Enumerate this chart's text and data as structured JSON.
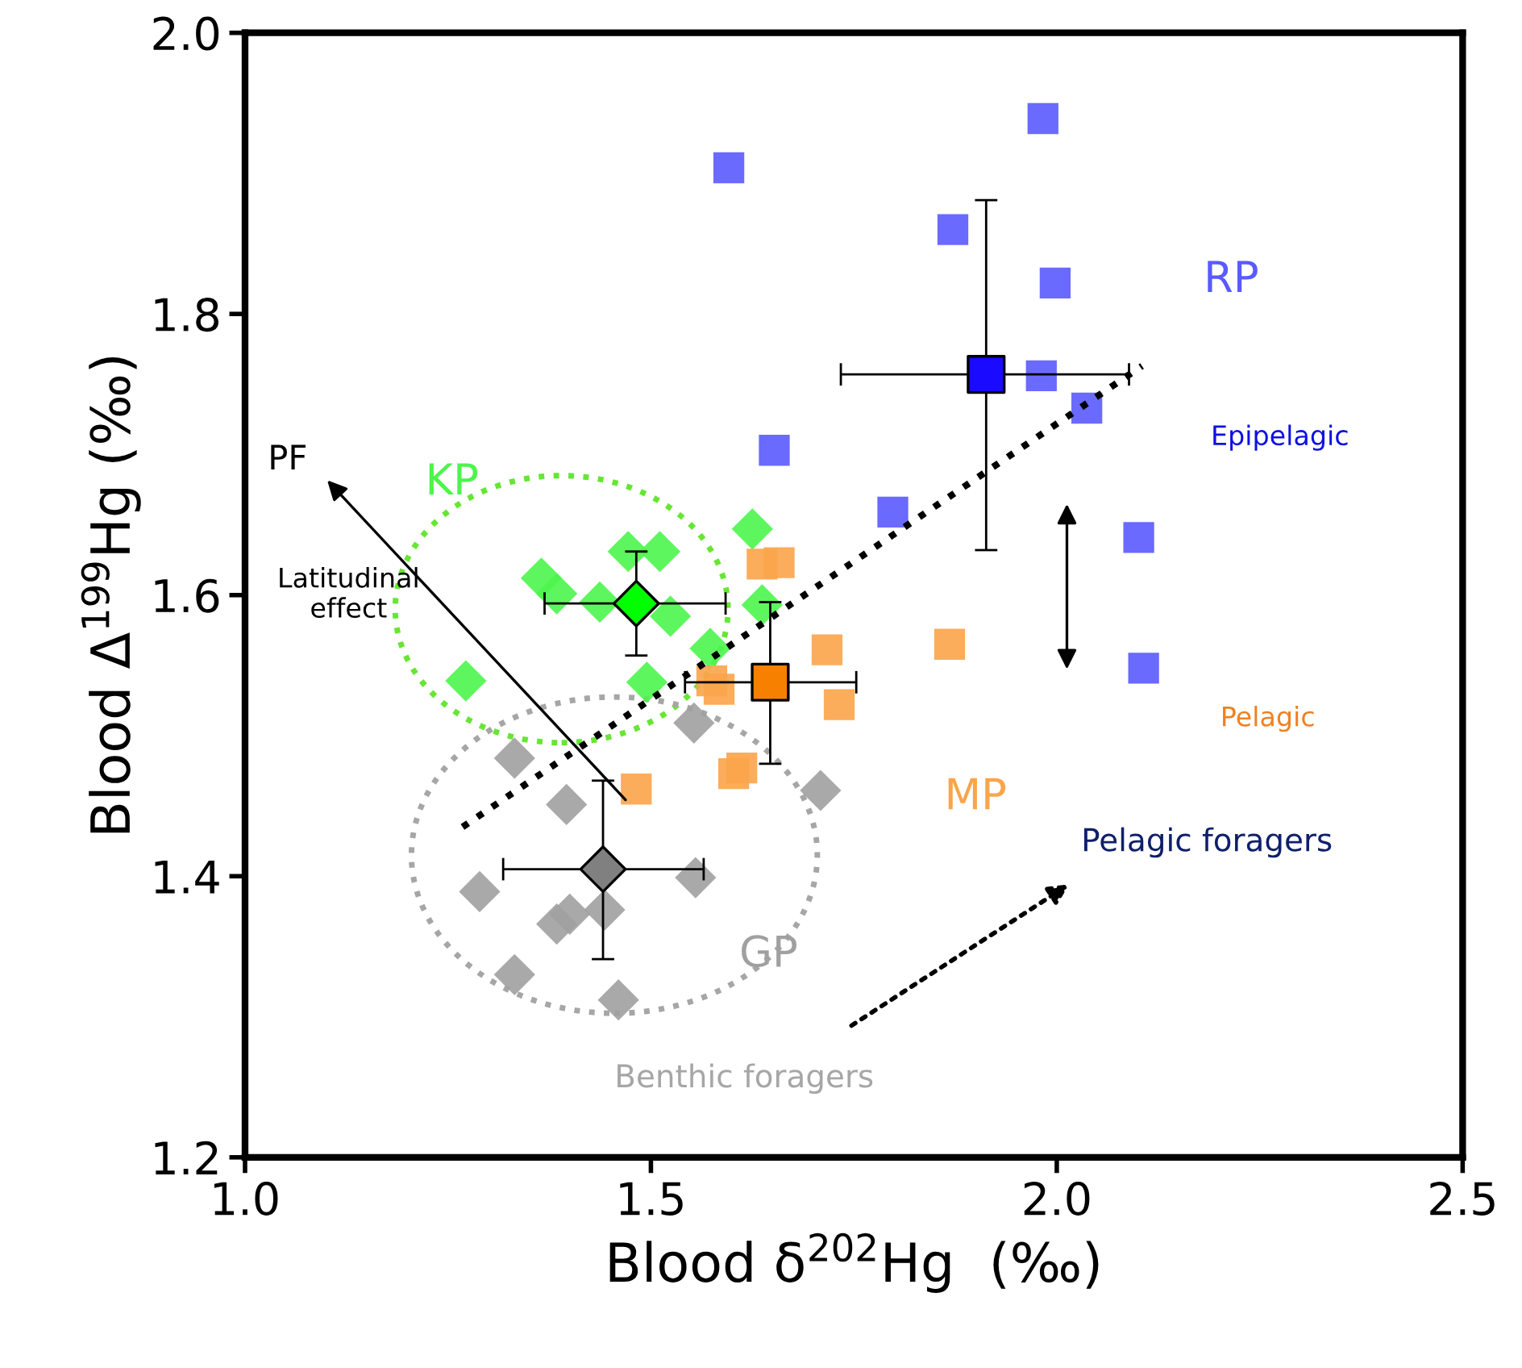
{
  "chart_data": {
    "type": "scatter",
    "xlabel": "Blood δ$^{202}$Hg  (‰)",
    "ylabel": "Blood Δ$^{199}$Hg (‰)",
    "xlim": [
      1.0,
      2.5
    ],
    "xticks": [
      {
        "value": 1,
        "label": "1.0"
      },
      1.5,
      {
        "value": 2,
        "label": "2.0"
      },
      2.5
    ],
    "ylim": [
      1.2,
      2.0
    ],
    "yticks": [
      1.2,
      1.4,
      1.6,
      1.8,
      {
        "value": 2,
        "label": "2.0"
      }
    ],
    "grid": false,
    "legend": false,
    "series": [
      {
        "name": "KP",
        "color": "#4cf54c",
        "marker": "diamond",
        "x": [
          1.365,
          1.384,
          1.472,
          1.511,
          1.437,
          1.524,
          1.573,
          1.272,
          1.495,
          1.625,
          1.637
        ],
        "values": [
          1.612,
          1.601,
          1.631,
          1.631,
          1.595,
          1.585,
          1.562,
          1.539,
          1.538,
          1.647,
          1.593
        ]
      },
      {
        "name": "RP",
        "color": "#5a5aff",
        "marker": "square",
        "x": [
          1.596,
          1.983,
          1.872,
          1.998,
          1.981,
          2.037,
          1.652,
          1.798,
          2.101,
          2.107
        ],
        "values": [
          1.904,
          1.939,
          1.86,
          1.822,
          1.756,
          1.733,
          1.703,
          1.659,
          1.641,
          1.548
        ]
      },
      {
        "name": "MP",
        "color": "#fba44a",
        "marker": "square",
        "x": [
          1.637,
          1.658,
          1.717,
          1.732,
          1.868,
          1.575,
          1.584,
          1.602,
          1.612,
          1.482
        ],
        "values": [
          1.622,
          1.623,
          1.561,
          1.522,
          1.565,
          1.539,
          1.533,
          1.473,
          1.477,
          1.462
        ]
      },
      {
        "name": "GP",
        "color": "#a0a0a0",
        "marker": "diamond",
        "x": [
          1.553,
          1.332,
          1.396,
          1.709,
          1.289,
          1.555,
          1.443,
          1.4,
          1.384,
          1.332,
          1.46
        ],
        "values": [
          1.509,
          1.484,
          1.451,
          1.461,
          1.389,
          1.399,
          1.376,
          1.373,
          1.366,
          1.33,
          1.312
        ]
      },
      {
        "color": "#00ff00",
        "marker": "diamond",
        "x": [
          1.482
        ],
        "values": [
          1.594
        ],
        "xerrors": [
          [
            1.369,
            1.592
          ]
        ],
        "errors": [
          [
            1.557,
            1.631
          ]
        ]
      },
      {
        "color": "#1a0aff",
        "marker": "square",
        "x": [
          1.913
        ],
        "values": [
          1.757
        ],
        "xerrors": [
          [
            1.734,
            2.089
          ]
        ],
        "errors": [
          [
            1.632,
            1.881
          ]
        ]
      },
      {
        "color": "#f88000",
        "marker": "square",
        "x": [
          1.647
        ],
        "values": [
          1.538
        ],
        "xerrors": [
          [
            1.542,
            1.753
          ]
        ],
        "errors": [
          [
            1.48,
            1.595
          ]
        ]
      },
      {
        "color": "#808080",
        "marker": "diamond",
        "x": [
          1.441
        ],
        "values": [
          1.405
        ],
        "xerrors": [
          [
            1.318,
            1.565
          ]
        ],
        "errors": [
          [
            1.341,
            1.468
          ]
        ]
      },
      {
        "type": "line",
        "color": "#000000",
        "line_style": "dotted",
        "marker": "none",
        "x": [
          1.268,
          2.105
        ],
        "values": [
          1.435,
          1.763
        ]
      }
    ],
    "annotations": [
      "PF",
      "Latitudinal\neffect",
      "Epipelagic",
      "Pelagic",
      "Pelagic foragers",
      "Benthic foragers"
    ]
  }
}
